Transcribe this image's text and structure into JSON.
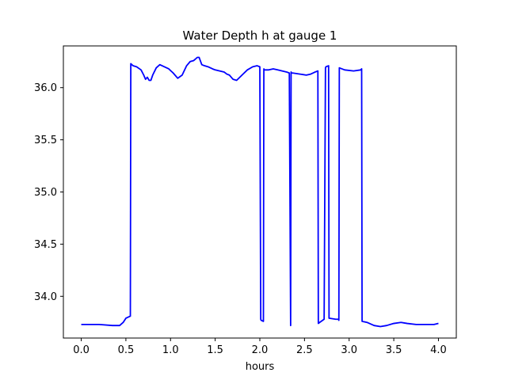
{
  "chart_data": {
    "type": "line",
    "title": "Water Depth h at gauge 1",
    "xlabel": "hours",
    "ylabel": "",
    "xlim": [
      -0.2,
      4.2
    ],
    "ylim": [
      33.6,
      36.4
    ],
    "xticks": [
      0.0,
      0.5,
      1.0,
      1.5,
      2.0,
      2.5,
      3.0,
      3.5,
      4.0
    ],
    "xtick_labels": [
      "0.0",
      "0.5",
      "1.0",
      "1.5",
      "2.0",
      "2.5",
      "3.0",
      "3.5",
      "4.0"
    ],
    "yticks": [
      34.0,
      34.5,
      35.0,
      35.5,
      36.0
    ],
    "ytick_labels": [
      "34.0",
      "34.5",
      "35.0",
      "35.5",
      "36.0"
    ],
    "grid": false,
    "series": [
      {
        "color": "#0000ff",
        "x": [
          0.0,
          0.2,
          0.35,
          0.43,
          0.47,
          0.5,
          0.55,
          0.555,
          0.58,
          0.62,
          0.67,
          0.7,
          0.72,
          0.74,
          0.76,
          0.78,
          0.8,
          0.84,
          0.88,
          0.93,
          0.98,
          1.03,
          1.08,
          1.13,
          1.18,
          1.22,
          1.26,
          1.3,
          1.32,
          1.35,
          1.38,
          1.42,
          1.47,
          1.5,
          1.55,
          1.6,
          1.63,
          1.66,
          1.7,
          1.74,
          1.8,
          1.86,
          1.92,
          1.97,
          2.0,
          2.01,
          2.015,
          2.04,
          2.045,
          2.05,
          2.1,
          2.15,
          2.2,
          2.25,
          2.3,
          2.33,
          2.345,
          2.35,
          2.355,
          2.37,
          2.45,
          2.52,
          2.57,
          2.62,
          2.65,
          2.655,
          2.67,
          2.72,
          2.735,
          2.74,
          2.77,
          2.775,
          2.78,
          2.85,
          2.88,
          2.885,
          2.89,
          2.95,
          3.05,
          3.13,
          3.14,
          3.145,
          3.2,
          3.28,
          3.35,
          3.42,
          3.5,
          3.58,
          3.65,
          3.75,
          3.85,
          3.95,
          4.0
        ],
        "y": [
          33.73,
          33.73,
          33.72,
          33.72,
          33.75,
          33.79,
          33.81,
          36.23,
          36.21,
          36.2,
          36.17,
          36.12,
          36.08,
          36.1,
          36.07,
          36.07,
          36.12,
          36.19,
          36.22,
          36.2,
          36.18,
          36.14,
          36.09,
          36.12,
          36.21,
          36.25,
          36.26,
          36.29,
          36.29,
          36.22,
          36.21,
          36.2,
          36.18,
          36.17,
          36.16,
          36.15,
          36.13,
          36.12,
          36.08,
          36.07,
          36.12,
          36.17,
          36.2,
          36.21,
          36.2,
          33.78,
          33.77,
          33.76,
          36.18,
          36.17,
          36.17,
          36.18,
          36.17,
          36.16,
          36.15,
          36.14,
          33.72,
          36.15,
          36.14,
          36.14,
          36.13,
          36.12,
          36.13,
          36.15,
          36.16,
          33.74,
          33.75,
          33.78,
          36.19,
          36.2,
          36.21,
          33.79,
          33.79,
          33.78,
          33.78,
          33.77,
          36.19,
          36.17,
          36.16,
          36.17,
          36.18,
          33.76,
          33.75,
          33.72,
          33.71,
          33.72,
          33.74,
          33.75,
          33.74,
          33.73,
          33.73,
          33.73,
          33.74
        ]
      }
    ]
  }
}
